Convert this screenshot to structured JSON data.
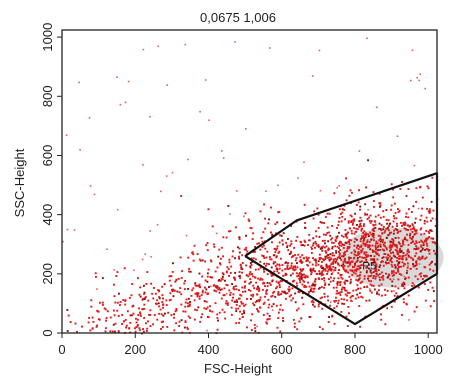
{
  "chart_data": {
    "type": "scatter",
    "title": "0,0675 1,006",
    "xlabel": "FSC-Height",
    "ylabel": "SSC-Height",
    "xlim": [
      0,
      1024
    ],
    "ylim": [
      0,
      1024
    ],
    "xticks": [
      0,
      200,
      400,
      600,
      800,
      1000
    ],
    "yticks": [
      0,
      200,
      400,
      600,
      800,
      1000
    ],
    "grid": false,
    "point_color": "#e01a1a",
    "density_core_color": "#b9b9b9",
    "gate": {
      "label": "R5",
      "label_at": [
        820,
        215
      ],
      "vertices": [
        [
          500,
          260
        ],
        [
          640,
          380
        ],
        [
          1024,
          540
        ],
        [
          1024,
          200
        ],
        [
          800,
          30
        ],
        [
          500,
          260
        ]
      ]
    },
    "clusters": [
      {
        "cx": 860,
        "cy": 270,
        "sx": 130,
        "sy": 85,
        "n": 1100
      },
      {
        "cx": 620,
        "cy": 220,
        "sx": 150,
        "sy": 90,
        "n": 700
      },
      {
        "cx": 380,
        "cy": 130,
        "sx": 140,
        "sy": 70,
        "n": 260
      },
      {
        "cx": 160,
        "cy": 50,
        "sx": 90,
        "sy": 40,
        "n": 120
      }
    ]
  }
}
